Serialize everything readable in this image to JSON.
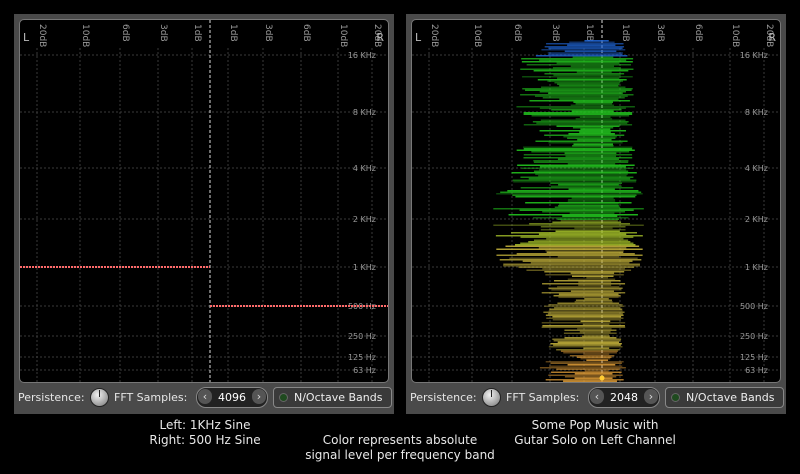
{
  "colors": {
    "panel_bg": "#4a4a4a",
    "screen_bg": "#000000",
    "sine_trace": "#ff6a6a"
  },
  "scale": {
    "left_label": "L",
    "right_label": "R",
    "db_ticks": [
      "20dB",
      "10dB",
      "6dB",
      "3dB",
      "1dB",
      "1dB",
      "3dB",
      "6dB",
      "10dB",
      "20dB"
    ],
    "freq_ticks": [
      "16 KHz",
      "8 KHz",
      "4 KHz",
      "2 KHz",
      "1 KHz",
      "500 Hz",
      "250 Hz",
      "125 Hz",
      "63 Hz"
    ]
  },
  "panels": [
    {
      "controls": {
        "persistence_label": "Persistence:",
        "fft_label": "FFT Samples:",
        "fft_value": "4096",
        "prev_icon": "chevron-left-icon",
        "next_icon": "chevron-right-icon",
        "bands_label": "N/Octave Bands"
      },
      "caption": {
        "line1": "Left: 1KHz Sine",
        "line2": "Right: 500 Hz Sine"
      }
    },
    {
      "controls": {
        "persistence_label": "Persistence:",
        "fft_label": "FFT Samples:",
        "fft_value": "2048",
        "prev_icon": "chevron-left-icon",
        "next_icon": "chevron-right-icon",
        "bands_label": "N/Octave Bands"
      },
      "caption": {
        "line1": "Some Pop Music with",
        "line2": "Gutar Solo on Left Channel"
      }
    }
  ],
  "center_caption": {
    "line1": "Color represents absolute",
    "line2": "signal level per frequency band"
  }
}
